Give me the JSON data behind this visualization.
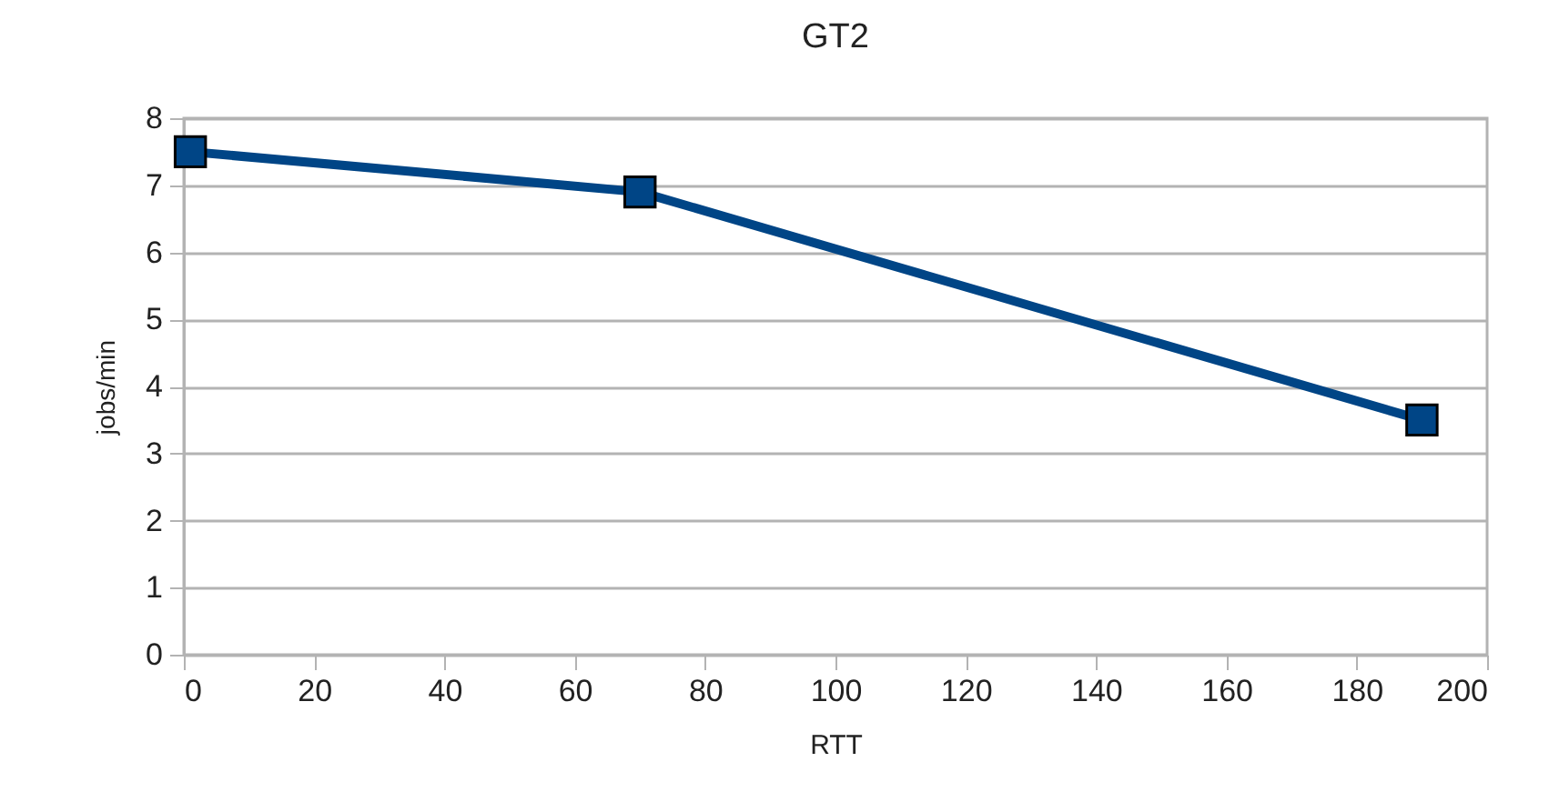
{
  "chart_data": {
    "type": "line",
    "title": "GT2",
    "xlabel": "RTT",
    "ylabel": "jobs/min",
    "x": [
      1,
      70,
      190
    ],
    "series": [
      {
        "color": "#004586",
        "values": [
          7.5,
          6.9,
          3.5
        ]
      }
    ],
    "xlim": [
      0,
      200
    ],
    "xticks": [
      0,
      20,
      40,
      60,
      80,
      100,
      120,
      140,
      160,
      180,
      200
    ],
    "ylim": [
      0,
      8
    ],
    "yticks": [
      0,
      1,
      2,
      3,
      4,
      5,
      6,
      7,
      8
    ],
    "grid": "y",
    "marker": "square",
    "line_style": "solid"
  }
}
